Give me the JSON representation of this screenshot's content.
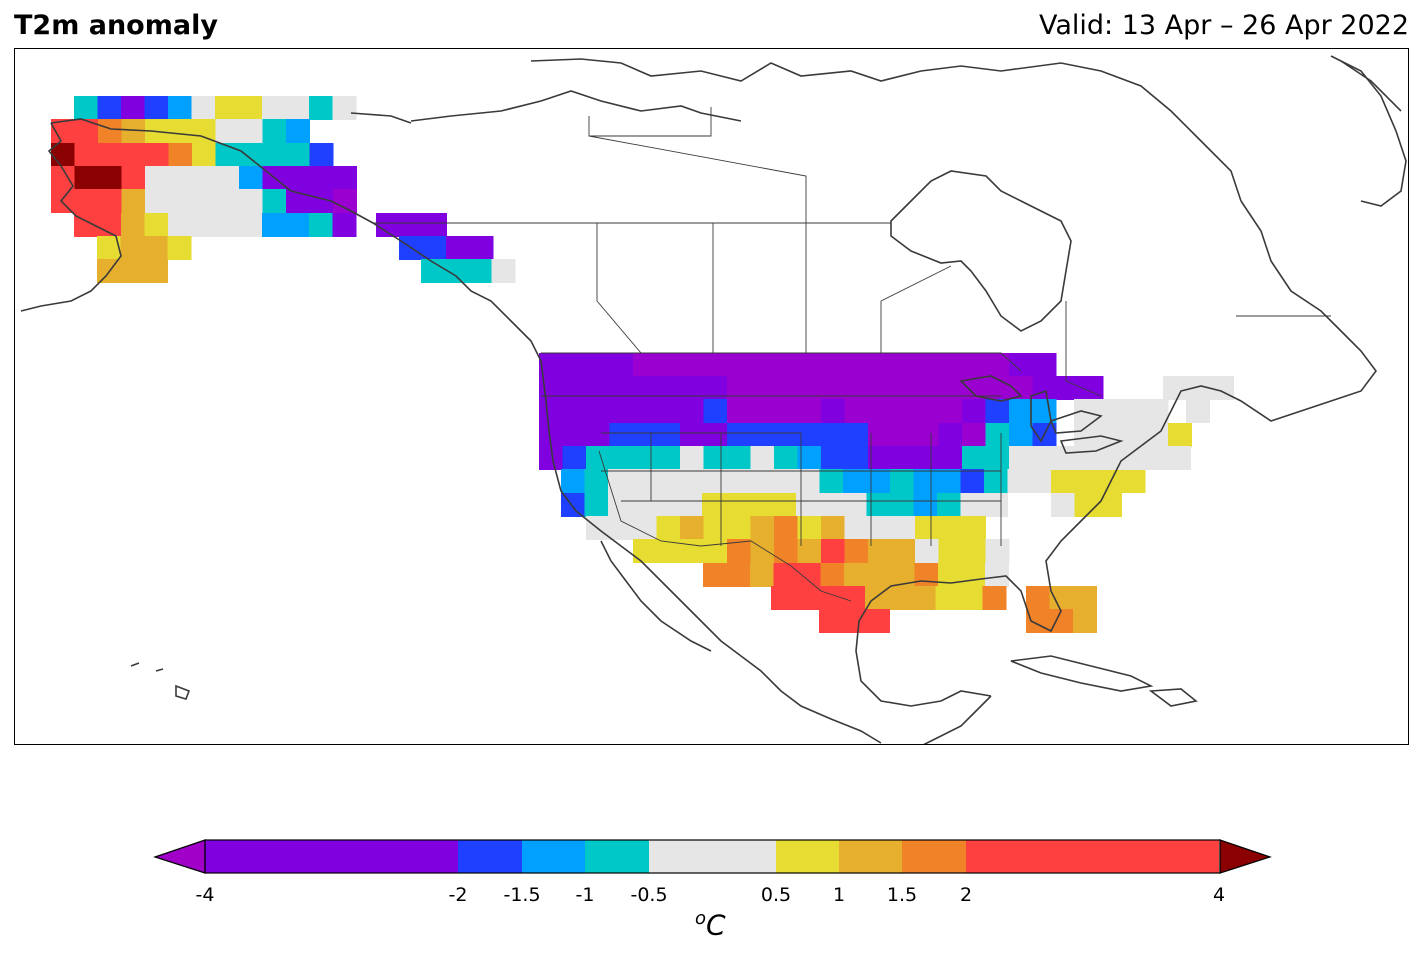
{
  "title": "T2m anomaly",
  "valid": "Valid: 13 Apr – 26 Apr 2022",
  "colorbar": {
    "unit_sup": "o",
    "unit_main": "C",
    "ticks": [
      "-4",
      "-2",
      "-1.5",
      "-1",
      "-0.5",
      "0.5",
      "1",
      "1.5",
      "2",
      "4"
    ],
    "bins": [
      {
        "from": -4,
        "to": -2,
        "color": "#8000e0"
      },
      {
        "from": -2,
        "to": -1.5,
        "color": "#2040ff"
      },
      {
        "from": -1.5,
        "to": -1,
        "color": "#00a0ff"
      },
      {
        "from": -1,
        "to": -0.5,
        "color": "#00c8c8"
      },
      {
        "from": -0.5,
        "to": 0.5,
        "color": "#e6e6e6"
      },
      {
        "from": 0.5,
        "to": 1,
        "color": "#e6dc32"
      },
      {
        "from": 1,
        "to": 1.5,
        "color": "#e6af2d"
      },
      {
        "from": 1.5,
        "to": 2,
        "color": "#f08228"
      },
      {
        "from": 2,
        "to": 4,
        "color": "#ff4040"
      }
    ],
    "under_color": "#a000c8",
    "over_color": "#8b0000"
  }
}
